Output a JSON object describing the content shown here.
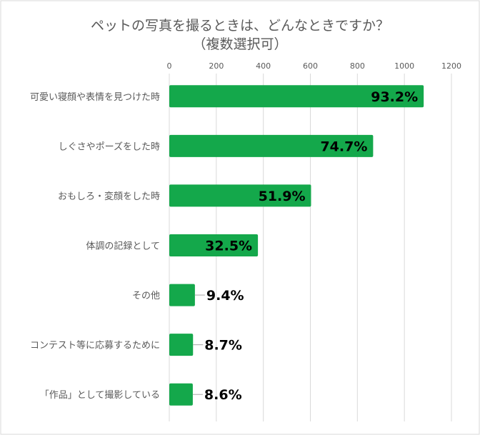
{
  "chart_data": {
    "type": "bar",
    "orientation": "horizontal",
    "title": "ペットの写真を撮るときは、どんなときですか？",
    "subtitle": "（複数選択可）",
    "xlim": [
      0,
      1200
    ],
    "xticks": [
      0,
      200,
      400,
      600,
      800,
      1000,
      1200
    ],
    "grid": true,
    "categories": [
      "可愛い寝顔や表情を見つけた時",
      "しぐさやポーズをした時",
      "おもしろ・変顔をした時",
      "体調の記録として",
      "その他",
      "コンテスト等に応募するために",
      "「作品」として撮影している"
    ],
    "values": [
      1082,
      867,
      603,
      377,
      109,
      101,
      100
    ],
    "data_labels": [
      "93.2%",
      "74.7%",
      "51.9%",
      "32.5%",
      "9.4%",
      "8.7%",
      "8.6%"
    ],
    "colors": {
      "bar": "#14A84B",
      "grid": "#D9D9D9",
      "text": "#595959",
      "label": "#000000"
    }
  }
}
